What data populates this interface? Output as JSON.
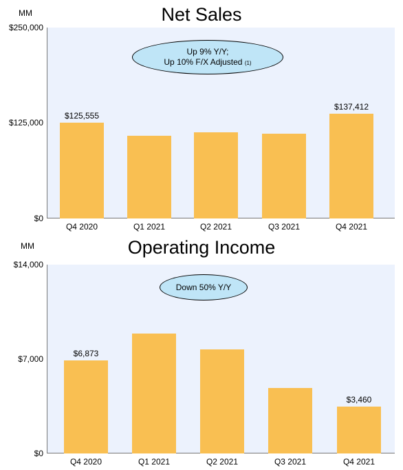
{
  "chart_data": [
    {
      "type": "bar",
      "title": "Net Sales",
      "unit_label": "MM",
      "categories": [
        "Q4 2020",
        "Q1 2021",
        "Q2 2021",
        "Q3 2021",
        "Q4 2021"
      ],
      "values": [
        125555,
        108518,
        113080,
        110812,
        137412
      ],
      "data_labels": [
        "$125,555",
        "",
        "",
        "",
        "$137,412"
      ],
      "yticks": [
        "$0",
        "$125,000",
        "$250,000"
      ],
      "ylim": [
        0,
        250000
      ],
      "callout": {
        "line1": "Up 9% Y/Y;",
        "line2": "Up 10% F/X Adjusted",
        "footnote": "(1)"
      },
      "bar_color": "#f9bf52",
      "plot_bg": "#ecf2fd",
      "callout_color": "#bfe5f7"
    },
    {
      "type": "bar",
      "title": "Operating Income",
      "unit_label": "MM",
      "categories": [
        "Q4 2020",
        "Q1 2021",
        "Q2 2021",
        "Q3 2021",
        "Q4 2021"
      ],
      "values": [
        6873,
        8865,
        7702,
        4852,
        3460
      ],
      "data_labels": [
        "$6,873",
        "",
        "",
        "",
        "$3,460"
      ],
      "yticks": [
        "$0",
        "$7,000",
        "$14,000"
      ],
      "ylim": [
        0,
        14000
      ],
      "callout": {
        "line1": "Down 50% Y/Y",
        "line2": "",
        "footnote": ""
      },
      "bar_color": "#f9bf52",
      "plot_bg": "#ecf2fd",
      "callout_color": "#bfe5f7"
    }
  ]
}
